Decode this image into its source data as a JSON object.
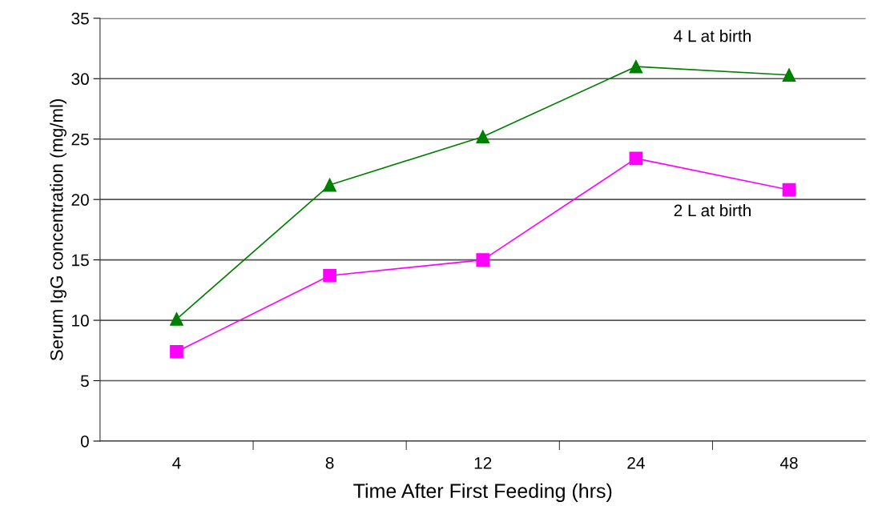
{
  "chart_data": {
    "type": "line",
    "xlabel": "Time After First Feeding (hrs)",
    "ylabel": "Serum IgG concentration (mg/ml)",
    "categories": [
      "4",
      "8",
      "12",
      "24",
      "48"
    ],
    "series": [
      {
        "name": "4 L at birth",
        "color": "#008000",
        "marker": "triangle",
        "values": [
          10.1,
          21.2,
          25.2,
          31.0,
          30.3
        ]
      },
      {
        "name": "2 L at birth",
        "color": "#ff00ff",
        "marker": "square",
        "values": [
          7.4,
          13.7,
          15.0,
          23.4,
          20.8
        ]
      }
    ],
    "ylim": [
      0,
      35
    ],
    "yticks": [
      0,
      5,
      10,
      15,
      20,
      25,
      30,
      35
    ],
    "grid": "y",
    "legend": false,
    "line_style": "solid"
  }
}
